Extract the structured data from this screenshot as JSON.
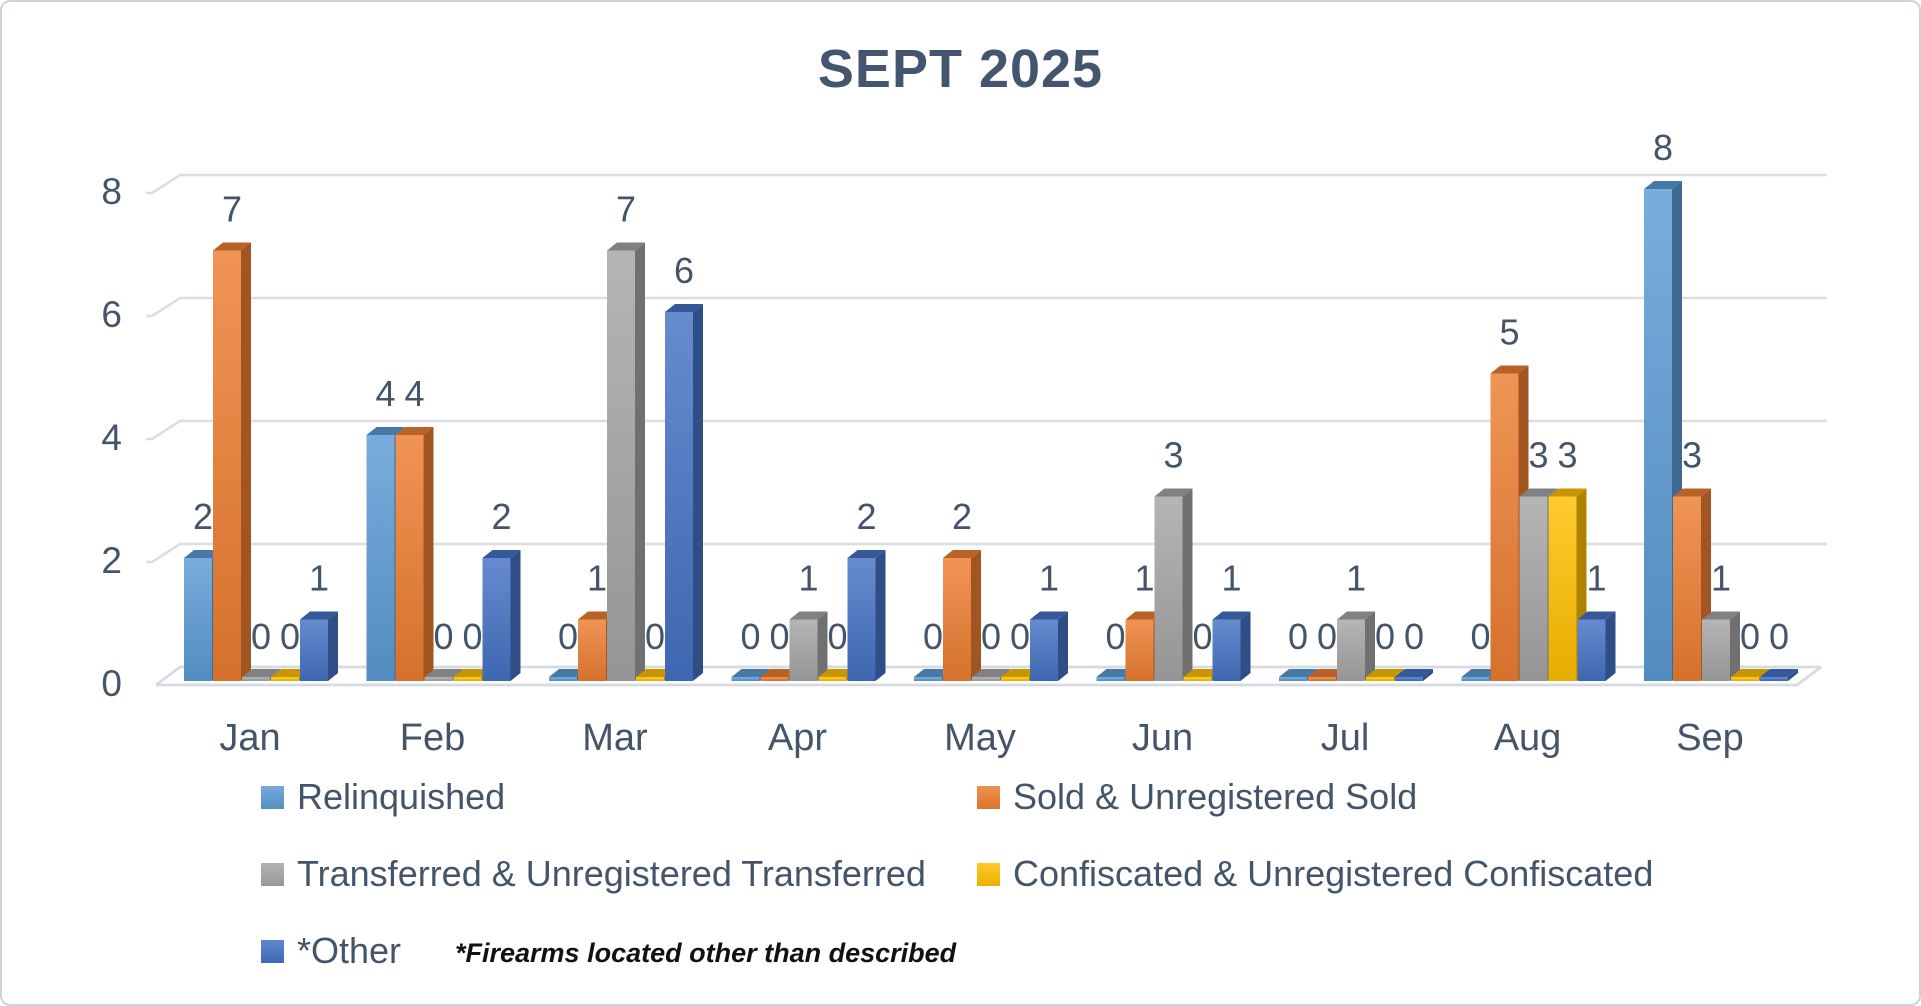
{
  "title": "SEPT 2025",
  "footnote": "*Firearms located other than described",
  "chart_data": {
    "type": "bar",
    "subtype": "3d-clustered-column",
    "title": "SEPT 2025",
    "categories": [
      "Jan",
      "Feb",
      "Mar",
      "Apr",
      "May",
      "Jun",
      "Jul",
      "Aug",
      "Sep"
    ],
    "series": [
      {
        "name": "Relinquished",
        "color": "#5B9BD5",
        "values": [
          2,
          4,
          0,
          0,
          0,
          0,
          0,
          0,
          8
        ]
      },
      {
        "name": "Sold & Unregistered Sold",
        "color": "#ED7D31",
        "values": [
          7,
          4,
          1,
          0,
          2,
          1,
          0,
          5,
          3
        ]
      },
      {
        "name": "Transferred & Unregistered Transferred",
        "color": "#A5A5A5",
        "values": [
          0,
          0,
          7,
          1,
          0,
          3,
          1,
          3,
          1
        ]
      },
      {
        "name": "Confiscated & Unregistered Confiscated",
        "color": "#FFC000",
        "values": [
          0,
          0,
          0,
          0,
          0,
          0,
          0,
          3,
          0
        ]
      },
      {
        "name": "*Other",
        "color": "#4472C4",
        "values": [
          1,
          2,
          6,
          2,
          1,
          1,
          0,
          1,
          0
        ]
      }
    ],
    "y_ticks": [
      0,
      2,
      4,
      6,
      8
    ],
    "ylim": [
      0,
      8
    ],
    "data_labels": true,
    "gridlines": true,
    "legend_position": "bottom",
    "text_color": "#44546A",
    "gridline_color": "#DBDEE6"
  },
  "legend": {
    "items": [
      {
        "label": "Relinquished"
      },
      {
        "label": "Sold & Unregistered Sold"
      },
      {
        "label": "Transferred & Unregistered Transferred"
      },
      {
        "label": "Confiscated & Unregistered Confiscated"
      },
      {
        "label": "*Other"
      }
    ]
  }
}
